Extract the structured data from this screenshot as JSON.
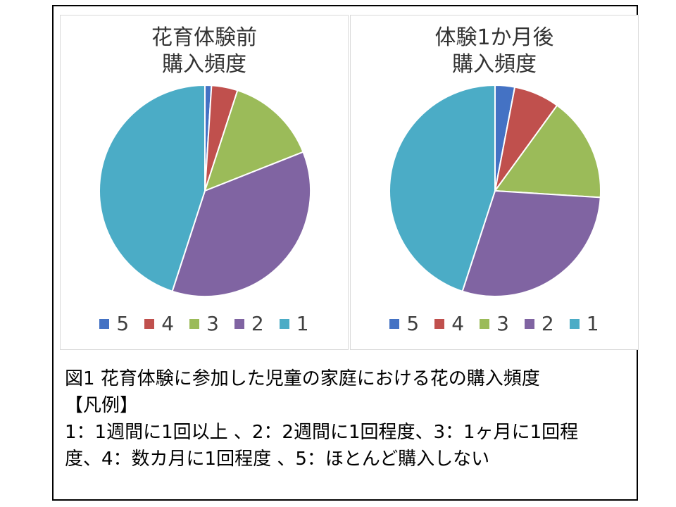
{
  "chart_data": [
    {
      "type": "pie",
      "title_lines": [
        "花育体験前",
        "購入頻度"
      ],
      "categories": [
        "5",
        "4",
        "3",
        "2",
        "1"
      ],
      "values": [
        1,
        4,
        14,
        36,
        45
      ],
      "colors": [
        "#4472C4",
        "#C0504D",
        "#9BBB59",
        "#8064A2",
        "#4BACC6"
      ],
      "legend": "bottom"
    },
    {
      "type": "pie",
      "title_lines": [
        "体験1か月後",
        "購入頻度"
      ],
      "categories": [
        "5",
        "4",
        "3",
        "2",
        "1"
      ],
      "values": [
        3,
        7,
        16,
        29,
        45
      ],
      "colors": [
        "#4472C4",
        "#C0504D",
        "#9BBB59",
        "#8064A2",
        "#4BACC6"
      ],
      "legend": "bottom"
    }
  ],
  "caption": {
    "line1": "図1 花育体験に参加した児童の家庭における花の購入頻度",
    "line2": "【凡例】",
    "line3": "1：1週間に1回以上 、2：2週間に1回程度、3：1ヶ月に1回程",
    "line4": "度、4：数カ月に1回程度 、5：ほとんど購入しない"
  }
}
